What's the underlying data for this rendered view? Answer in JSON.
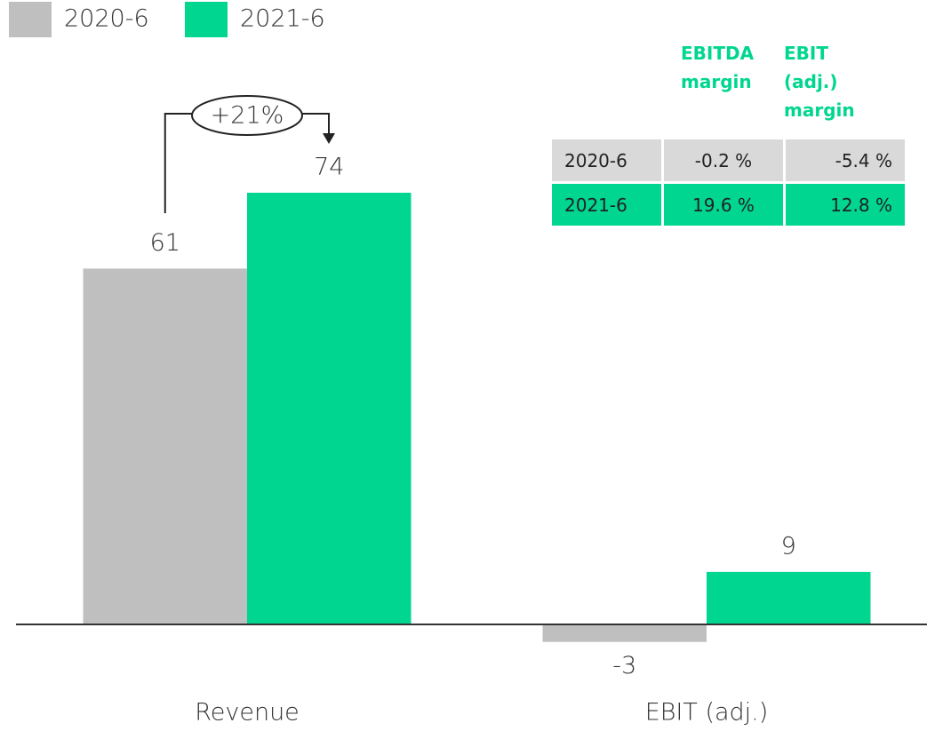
{
  "chart_data": {
    "type": "bar",
    "categories": [
      "Revenue",
      "EBIT (adj.)"
    ],
    "series": [
      {
        "name": "2020-6",
        "color": "#bfbfbf",
        "values": [
          61,
          -3
        ]
      },
      {
        "name": "2021-6",
        "color": "#00d68f",
        "values": [
          74,
          9
        ]
      }
    ],
    "annotation": "+21%",
    "legend": "top-left"
  },
  "table": {
    "header": [
      "EBITDA margin",
      "EBIT (adj.) margin"
    ],
    "rows": [
      [
        "2020-6",
        "-0.2 %",
        "-5.4 %"
      ],
      [
        "2021-6",
        "19.6 %",
        "12.8 %"
      ]
    ]
  }
}
